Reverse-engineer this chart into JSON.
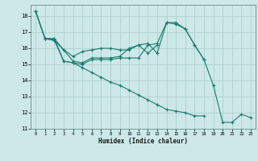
{
  "xlabel": "Humidex (Indice chaleur)",
  "background_color": "#cce8e8",
  "grid_color": "#b0d0d0",
  "line_color": "#1a7a6e",
  "xlim": [
    -0.5,
    23.5
  ],
  "ylim": [
    11,
    18.7
  ],
  "yticks": [
    11,
    12,
    13,
    14,
    15,
    16,
    17,
    18
  ],
  "xticks": [
    0,
    1,
    2,
    3,
    4,
    5,
    6,
    7,
    8,
    9,
    10,
    11,
    12,
    13,
    14,
    15,
    16,
    17,
    18,
    19,
    20,
    21,
    22,
    23
  ],
  "line1_x": [
    0,
    1,
    2,
    3,
    4,
    5,
    6,
    7,
    8,
    9,
    10,
    11,
    12,
    13,
    14,
    15,
    16,
    17,
    18
  ],
  "line1_y": [
    18.3,
    16.6,
    16.6,
    15.2,
    15.1,
    15.0,
    15.3,
    15.3,
    15.3,
    15.4,
    15.4,
    15.4,
    16.2,
    16.3,
    17.6,
    17.6,
    17.2,
    16.2,
    15.3
  ],
  "line2_x": [
    0,
    1,
    2,
    3,
    4,
    5,
    6,
    7,
    8,
    9,
    10,
    11,
    12,
    13
  ],
  "line2_y": [
    18.3,
    16.6,
    16.6,
    15.9,
    15.5,
    15.8,
    15.9,
    16.0,
    16.0,
    15.9,
    15.9,
    16.2,
    15.7,
    16.2
  ],
  "line3_x": [
    0,
    1,
    2,
    3,
    4,
    5,
    6,
    7,
    8,
    9,
    10,
    11,
    12,
    13,
    14,
    15,
    16,
    17,
    18
  ],
  "line3_y": [
    18.3,
    16.6,
    16.5,
    15.2,
    15.1,
    14.8,
    14.5,
    14.2,
    13.9,
    13.7,
    13.4,
    13.1,
    12.8,
    12.5,
    12.2,
    12.1,
    12.0,
    11.8,
    11.8
  ],
  "line4_x": [
    1,
    2,
    3,
    4,
    5,
    6,
    7,
    8,
    9,
    10,
    11,
    12,
    13,
    14,
    15,
    16,
    17,
    18,
    19,
    20,
    21,
    22,
    23
  ],
  "line4_y": [
    16.6,
    16.5,
    15.9,
    15.2,
    15.1,
    15.4,
    15.4,
    15.4,
    15.5,
    16.0,
    16.2,
    16.3,
    15.7,
    17.6,
    17.5,
    17.2,
    16.2,
    15.3,
    13.7,
    11.4,
    11.4,
    11.9,
    11.7
  ]
}
